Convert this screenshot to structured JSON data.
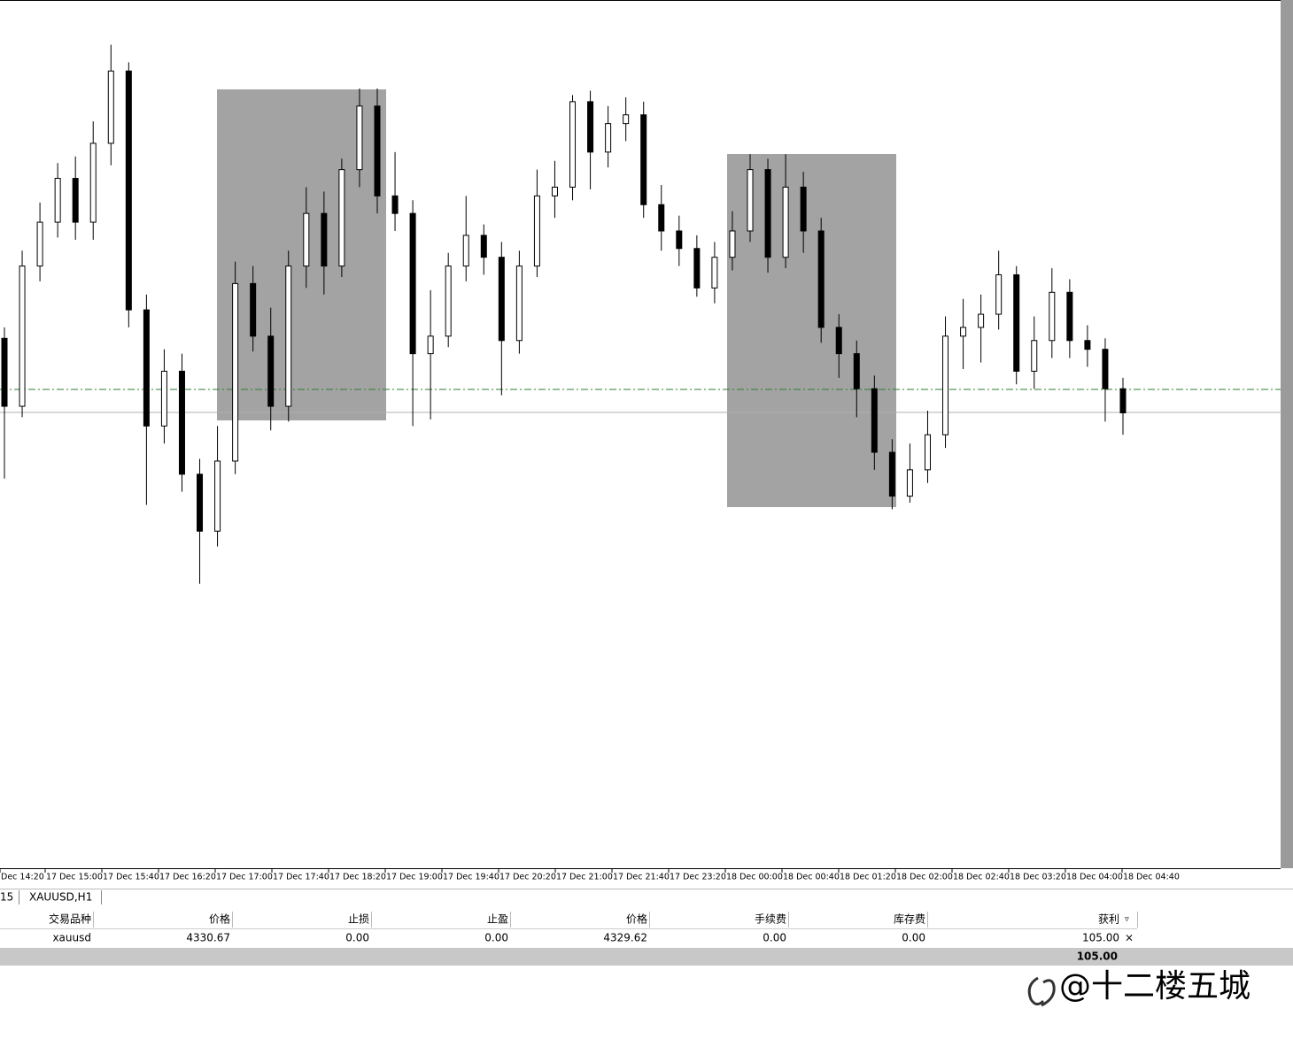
{
  "chart_data": {
    "type": "candlestick",
    "ylim": [
      4308.86,
      4348.44
    ],
    "time_labels": [
      "Dec 14:20",
      "17 Dec 15:00",
      "17 Dec 15:40",
      "17 Dec 16:20",
      "17 Dec 17:00",
      "17 Dec 17:40",
      "17 Dec 18:20",
      "17 Dec 19:00",
      "17 Dec 19:40",
      "17 Dec 20:20",
      "17 Dec 21:00",
      "17 Dec 21:40",
      "17 Dec 23:20",
      "18 Dec 00:00",
      "18 Dec 00:40",
      "18 Dec 01:20",
      "18 Dec 02:00",
      "18 Dec 02:40",
      "18 Dec 03:20",
      "18 Dec 04:00",
      "18 Dec 04:40"
    ],
    "open": [
      4333.0,
      4329.9,
      4336.3,
      4338.3,
      4340.3,
      4338.3,
      4341.9,
      4345.2,
      4334.3,
      4329.0,
      4331.5,
      4326.8,
      4324.2,
      4327.4,
      4335.5,
      4333.1,
      4329.9,
      4336.3,
      4338.7,
      4336.3,
      4340.7,
      4343.6,
      4339.5,
      4338.7,
      4332.3,
      4333.1,
      4336.3,
      4337.7,
      4336.7,
      4332.9,
      4336.3,
      4339.5,
      4339.9,
      4343.8,
      4341.5,
      4342.8,
      4343.2,
      4339.1,
      4337.9,
      4337.1,
      4335.3,
      4336.7,
      4337.9,
      4340.7,
      4336.7,
      4339.9,
      4337.9,
      4333.5,
      4332.3,
      4330.7,
      4327.8,
      4325.8,
      4327.0,
      4328.6,
      4333.1,
      4333.5,
      4334.1,
      4335.9,
      4331.5,
      4332.9,
      4335.1,
      4332.9,
      4332.5,
      4330.7
    ],
    "high": [
      4333.5,
      4337.0,
      4339.2,
      4341.0,
      4341.3,
      4342.9,
      4346.4,
      4345.6,
      4335.0,
      4332.5,
      4332.3,
      4327.5,
      4329.0,
      4336.5,
      4336.3,
      4334.4,
      4337.0,
      4339.9,
      4339.7,
      4341.2,
      4344.4,
      4344.4,
      4341.5,
      4339.3,
      4335.2,
      4336.9,
      4339.5,
      4338.2,
      4337.4,
      4337.0,
      4340.7,
      4341.1,
      4344.1,
      4344.3,
      4343.6,
      4344.0,
      4343.8,
      4340.0,
      4338.6,
      4337.7,
      4337.4,
      4338.8,
      4341.4,
      4341.2,
      4341.4,
      4340.6,
      4338.5,
      4334.1,
      4332.9,
      4331.3,
      4328.4,
      4328.2,
      4329.7,
      4334.0,
      4334.8,
      4335.0,
      4337.0,
      4336.3,
      4334.0,
      4336.2,
      4335.7,
      4333.6,
      4333.0,
      4331.2
    ],
    "low": [
      4326.6,
      4329.4,
      4335.6,
      4337.6,
      4337.5,
      4337.5,
      4340.9,
      4333.5,
      4325.4,
      4328.2,
      4326.0,
      4321.8,
      4323.5,
      4326.8,
      4332.4,
      4328.8,
      4329.2,
      4335.3,
      4335.0,
      4335.8,
      4339.9,
      4338.7,
      4337.9,
      4329.0,
      4329.3,
      4332.6,
      4335.6,
      4335.9,
      4330.4,
      4332.3,
      4335.8,
      4338.5,
      4339.3,
      4339.8,
      4340.8,
      4342.0,
      4338.5,
      4337.0,
      4336.3,
      4334.9,
      4334.6,
      4336.1,
      4337.4,
      4336.0,
      4336.2,
      4336.9,
      4332.8,
      4331.2,
      4329.4,
      4327.0,
      4325.2,
      4325.5,
      4326.4,
      4328.0,
      4331.6,
      4331.9,
      4333.4,
      4330.9,
      4330.7,
      4332.1,
      4332.1,
      4331.7,
      4329.2,
      4328.6
    ],
    "close": [
      4329.9,
      4336.3,
      4338.3,
      4340.3,
      4338.3,
      4341.9,
      4345.2,
      4334.3,
      4329.0,
      4331.5,
      4326.8,
      4324.2,
      4327.4,
      4335.5,
      4333.1,
      4329.9,
      4336.3,
      4338.7,
      4336.3,
      4340.7,
      4343.6,
      4339.5,
      4338.7,
      4332.3,
      4333.1,
      4336.3,
      4337.7,
      4336.7,
      4332.9,
      4336.3,
      4339.5,
      4339.9,
      4343.8,
      4341.5,
      4342.8,
      4343.2,
      4339.1,
      4337.9,
      4337.1,
      4335.3,
      4336.7,
      4337.9,
      4340.7,
      4336.7,
      4339.9,
      4337.9,
      4333.5,
      4332.3,
      4330.7,
      4327.8,
      4325.8,
      4327.0,
      4328.6,
      4333.1,
      4333.5,
      4334.1,
      4335.9,
      4331.5,
      4332.9,
      4335.1,
      4332.9,
      4332.5,
      4330.7,
      4329.6
    ],
    "levels": [
      4330.67,
      4329.62
    ]
  },
  "tabs": [
    "15",
    "XAUUSD,H1"
  ],
  "table": {
    "columns": [
      "交易品种",
      "价格",
      "止损",
      "止盈",
      "价格",
      "手续费",
      "库存费",
      "获利"
    ],
    "rows": [
      [
        "xauusd",
        "4330.67",
        "0.00",
        "0.00",
        "4329.62",
        "0.00",
        "0.00",
        "105.00"
      ]
    ],
    "total": "105.00"
  },
  "watermark": "@十二楼五城"
}
